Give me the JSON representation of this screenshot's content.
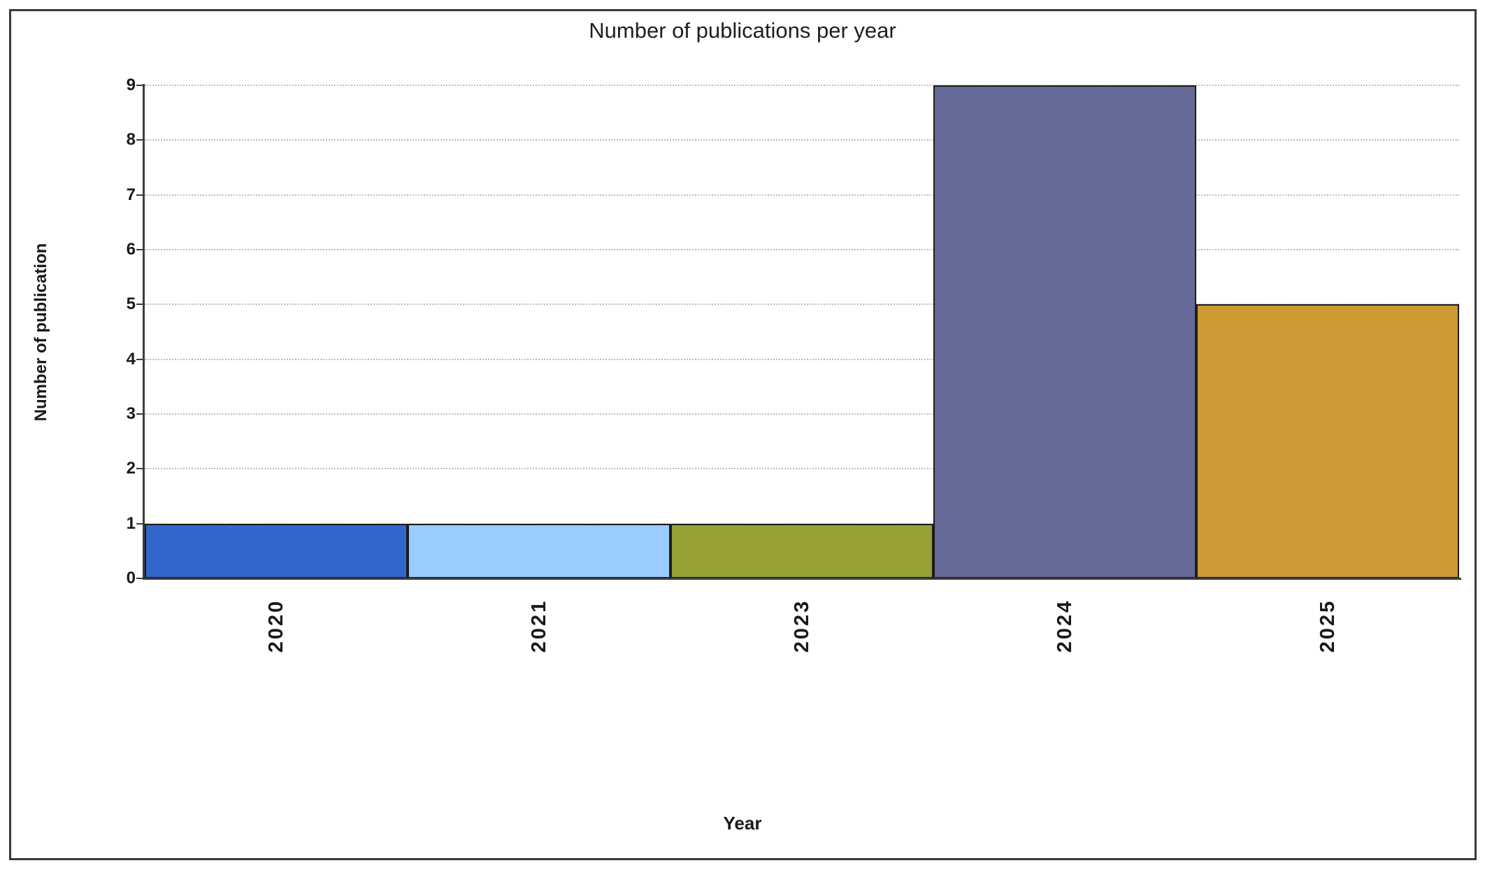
{
  "chart_data": {
    "type": "bar",
    "title": "Number of publications per year",
    "xlabel": "Year",
    "ylabel": "Number of publication",
    "categories": [
      "2020",
      "2021",
      "2023",
      "2024",
      "2025"
    ],
    "values": [
      1,
      1,
      1,
      9,
      5
    ],
    "bar_colors": [
      "#3366CC",
      "#99CCFF",
      "#99A033",
      "#666A99",
      "#CC9933"
    ],
    "bar_edge_color": "#1C1C1C",
    "ylim": [
      0,
      9
    ],
    "yticks": [
      0,
      1,
      2,
      3,
      4,
      5,
      6,
      7,
      8,
      9
    ],
    "grid": "horizontal-dotted",
    "gridline_color": "#BDBDBD",
    "axis_color": "#3D3D3D",
    "x_tick_rotation": -90,
    "legend": "none"
  }
}
